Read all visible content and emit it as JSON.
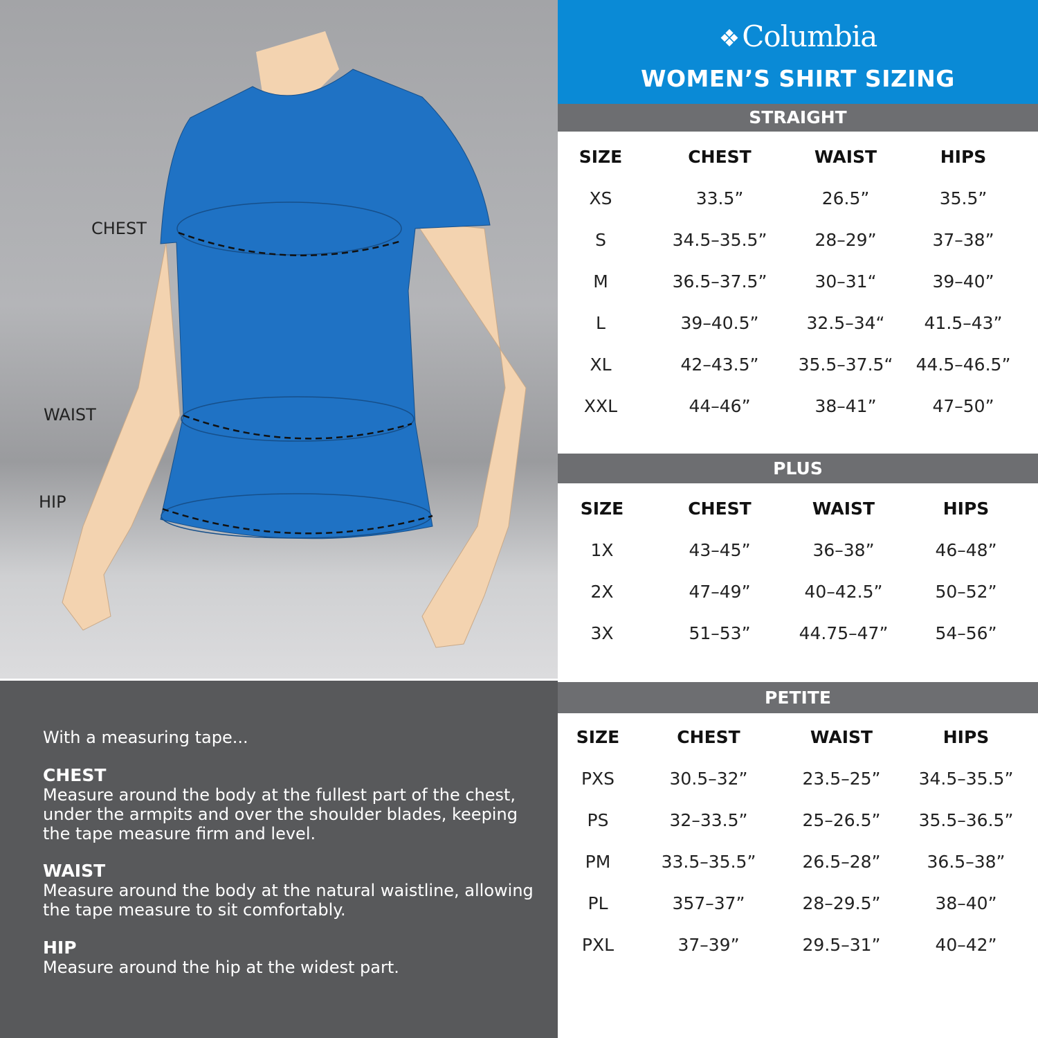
{
  "header": {
    "brand": "Columbia",
    "title": "WOMEN’S SHIRT SIZING"
  },
  "colors": {
    "brand_blue": "#0a8ad6",
    "bar_gray": "#6d6e71",
    "shirt_blue": "#1f72c4"
  },
  "diagram": {
    "labels": {
      "chest": "CHEST",
      "waist": "WAIST",
      "hip": "HIP"
    }
  },
  "instructions": {
    "intro": "With a measuring tape...",
    "items": [
      {
        "title": "CHEST",
        "text": "Measure around the body at the fullest part of the chest, under the armpits and over the shoulder blades, keeping the tape measure firm and level."
      },
      {
        "title": "WAIST",
        "text": "Measure around the body at the natural waistline, allowing the tape measure to sit comfortably."
      },
      {
        "title": "HIP",
        "text": "Measure around the hip at the widest part."
      }
    ]
  },
  "tables": [
    {
      "name": "STRAIGHT",
      "columns": [
        "SIZE",
        "CHEST",
        "WAIST",
        "HIPS"
      ],
      "rows": [
        [
          "XS",
          "33.5”",
          "26.5”",
          "35.5”"
        ],
        [
          "S",
          "34.5–35.5”",
          "28–29”",
          "37–38”"
        ],
        [
          "M",
          "36.5–37.5”",
          "30–31“",
          "39–40”"
        ],
        [
          "L",
          "39–40.5”",
          "32.5–34“",
          "41.5–43”"
        ],
        [
          "XL",
          "42–43.5”",
          "35.5–37.5“",
          "44.5–46.5”"
        ],
        [
          "XXL",
          "44–46”",
          "38–41”",
          "47–50”"
        ]
      ]
    },
    {
      "name": "PLUS",
      "columns": [
        "SIZE",
        "CHEST",
        "WAIST",
        "HIPS"
      ],
      "rows": [
        [
          "1X",
          "43–45”",
          "36–38”",
          "46–48”"
        ],
        [
          "2X",
          "47–49”",
          "40–42.5”",
          "50–52”"
        ],
        [
          "3X",
          "51–53”",
          "44.75–47”",
          "54–56”"
        ]
      ]
    },
    {
      "name": "PETITE",
      "columns": [
        "SIZE",
        "CHEST",
        "WAIST",
        "HIPS"
      ],
      "rows": [
        [
          "PXS",
          "30.5–32”",
          "23.5–25”",
          "34.5–35.5”"
        ],
        [
          "PS",
          "32–33.5”",
          "25–26.5”",
          "35.5–36.5”"
        ],
        [
          "PM",
          "33.5–35.5”",
          "26.5–28”",
          "36.5–38”"
        ],
        [
          "PL",
          "357–37”",
          "28–29.5”",
          "38–40”"
        ],
        [
          "PXL",
          "37–39”",
          "29.5–31”",
          "40–42”"
        ]
      ]
    }
  ]
}
